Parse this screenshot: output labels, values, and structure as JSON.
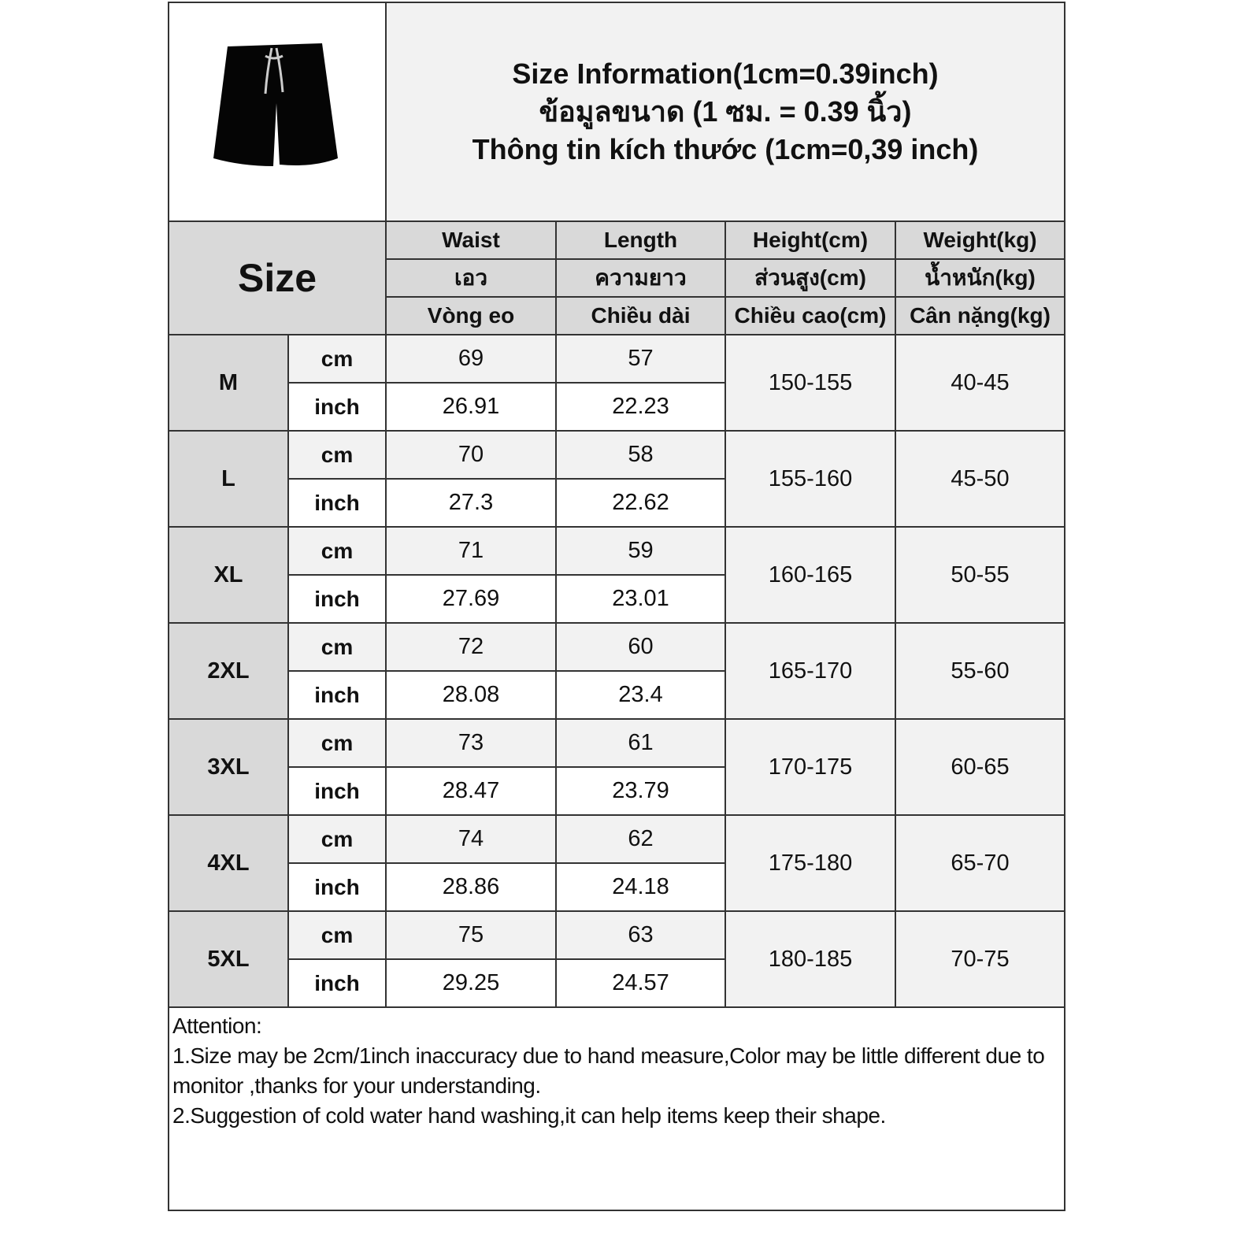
{
  "header": {
    "title_en": "Size Information(1cm=0.39inch)",
    "title_th": "ข้อมูลขนาด (1 ซม. = 0.39 นิ้ว)",
    "title_vi": "Thông tin kích thước (1cm=0,39 inch)",
    "product_icon": "black-shorts-image"
  },
  "columns": {
    "size_label": "Size",
    "headers": [
      {
        "en": "Waist",
        "th": "เอว",
        "vi": "Vòng eo"
      },
      {
        "en": "Length",
        "th": "ความยาว",
        "vi": "Chiều dài"
      },
      {
        "en": "Height(cm)",
        "th": "ส่วนสูง(cm)",
        "vi": "Chiều cao(cm)"
      },
      {
        "en": "Weight(kg)",
        "th": "น้ำหนัก(kg)",
        "vi": "Cân nặng(kg)"
      }
    ]
  },
  "units": {
    "cm": "cm",
    "inch": "inch"
  },
  "rows": [
    {
      "size": "M",
      "waist_cm": "69",
      "length_cm": "57",
      "waist_in": "26.91",
      "length_in": "22.23",
      "height": "150-155",
      "weight": "40-45"
    },
    {
      "size": "L",
      "waist_cm": "70",
      "length_cm": "58",
      "waist_in": "27.3",
      "length_in": "22.62",
      "height": "155-160",
      "weight": "45-50"
    },
    {
      "size": "XL",
      "waist_cm": "71",
      "length_cm": "59",
      "waist_in": "27.69",
      "length_in": "23.01",
      "height": "160-165",
      "weight": "50-55"
    },
    {
      "size": "2XL",
      "waist_cm": "72",
      "length_cm": "60",
      "waist_in": "28.08",
      "length_in": "23.4",
      "height": "165-170",
      "weight": "55-60"
    },
    {
      "size": "3XL",
      "waist_cm": "73",
      "length_cm": "61",
      "waist_in": "28.47",
      "length_in": "23.79",
      "height": "170-175",
      "weight": "60-65"
    },
    {
      "size": "4XL",
      "waist_cm": "74",
      "length_cm": "62",
      "waist_in": "28.86",
      "length_in": "24.18",
      "height": "175-180",
      "weight": "65-70"
    },
    {
      "size": "5XL",
      "waist_cm": "75",
      "length_cm": "63",
      "waist_in": "29.25",
      "length_in": "24.57",
      "height": "180-185",
      "weight": "70-75"
    }
  ],
  "attention": {
    "heading": "Attention:",
    "line1": "1.Size may be 2cm/1inch inaccuracy due to hand measure,Color may be little different due to monitor ,thanks for your understanding.",
    "line2": "2.Suggestion of cold water hand washing,it can help items keep their shape."
  },
  "colors": {
    "header_gray": "#d9d9d9",
    "cell_light": "#f2f2f2"
  }
}
